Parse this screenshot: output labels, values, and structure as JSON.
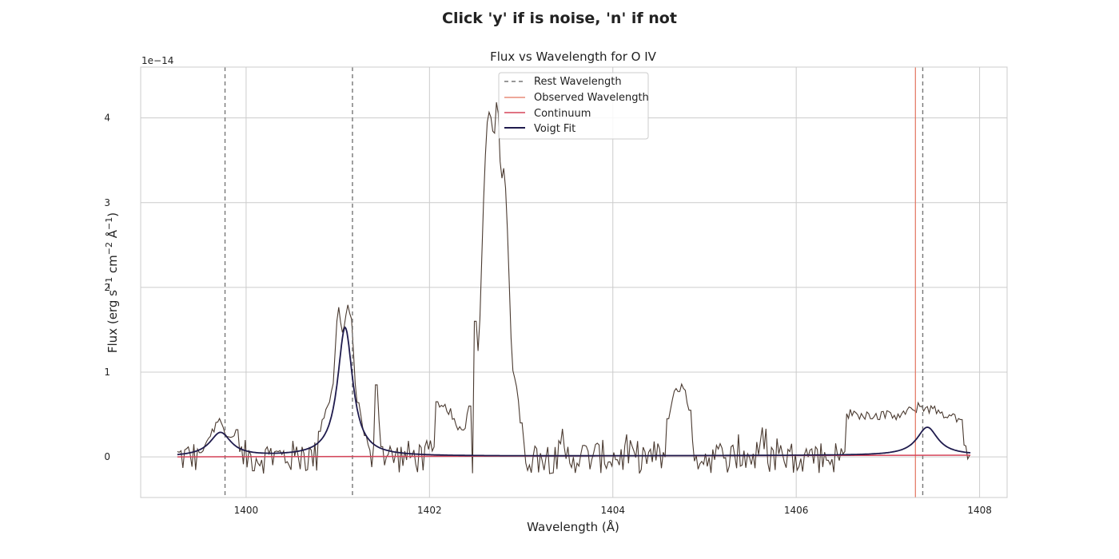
{
  "window": {
    "title": "Click 'y' if is noise, 'n' if not"
  },
  "colors": {
    "grid": "#cccccc",
    "frame": "#cccccc",
    "flux": "#4a3a30",
    "rest": "#777777",
    "observed": "#e3735e",
    "continuum": "#d6455a",
    "voigt": "#1f1b4d"
  },
  "chart_data": {
    "type": "line",
    "title": "Flux vs Wavelength for O IV",
    "xlabel": "Wavelength (Å)",
    "ylabel_parts": [
      "Flux (erg s",
      "−1",
      " cm",
      "−2",
      " Å",
      "−1",
      ")"
    ],
    "offset_text": "1e−14",
    "xlim": [
      1398.85,
      1408.3
    ],
    "ylim": [
      -0.48,
      4.6
    ],
    "xticks": [
      1400,
      1402,
      1404,
      1406,
      1408
    ],
    "yticks": [
      0,
      1,
      2,
      3,
      4
    ],
    "legend": {
      "location": "top-center",
      "items": [
        {
          "label": "Rest Wavelength",
          "style": "dashed",
          "color_key": "rest"
        },
        {
          "label": "Observed Wavelength",
          "style": "solid-thin",
          "color_key": "observed"
        },
        {
          "label": "Continuum",
          "style": "solid",
          "color_key": "continuum"
        },
        {
          "label": "Voigt Fit",
          "style": "solid-thick",
          "color_key": "voigt"
        }
      ]
    },
    "rest_wavelengths": [
      1399.77,
      1401.16,
      1407.38
    ],
    "observed_wavelength": 1407.3,
    "continuum": {
      "x": [
        1399.25,
        1407.9
      ],
      "y": [
        0.0,
        0.02
      ]
    },
    "voigt_components": [
      {
        "center": 1399.72,
        "amplitude": 0.28,
        "width": 0.14
      },
      {
        "center": 1401.08,
        "amplitude": 1.52,
        "width": 0.1
      },
      {
        "center": 1407.43,
        "amplitude": 0.33,
        "width": 0.14
      }
    ],
    "flux_series": {
      "name": "Flux",
      "x_start": 1399.25,
      "x_end": 1407.9,
      "step": 0.02,
      "noise_amplitude": 0.2,
      "features": [
        {
          "x": [
            1399.5,
            1399.72,
            1399.8,
            1399.9
          ],
          "y": [
            0.05,
            0.48,
            0.2,
            0.32
          ]
        },
        {
          "x": [
            1400.8,
            1400.95,
            1401.0,
            1401.05,
            1401.1,
            1401.15,
            1401.2,
            1401.3
          ],
          "y": [
            0.3,
            0.85,
            1.82,
            1.48,
            1.78,
            1.58,
            0.75,
            0.25
          ]
        },
        {
          "x": [
            1401.42,
            1401.48
          ],
          "y": [
            0.85,
            0.12
          ]
        },
        {
          "x": [
            1402.08,
            1402.22,
            1402.36,
            1402.44
          ],
          "y": [
            0.65,
            0.55,
            0.25,
            0.6
          ]
        },
        {
          "x": [
            1402.5,
            1402.54,
            1402.58,
            1402.62,
            1402.66,
            1402.7,
            1402.74,
            1402.78,
            1402.82,
            1402.86,
            1402.9,
            1402.94,
            1403.0
          ],
          "y": [
            1.6,
            1.2,
            2.75,
            3.9,
            4.1,
            3.7,
            4.35,
            3.2,
            3.4,
            2.45,
            1.0,
            0.95,
            0.4
          ]
        },
        {
          "x": [
            1404.6,
            1404.68,
            1404.72,
            1404.76,
            1404.84
          ],
          "y": [
            0.45,
            0.83,
            0.72,
            0.86,
            0.55
          ]
        },
        {
          "x": [
            1406.55,
            1407.12,
            1407.37,
            1407.8
          ],
          "y": [
            0.51,
            0.48,
            0.6,
            0.44
          ]
        }
      ]
    }
  }
}
